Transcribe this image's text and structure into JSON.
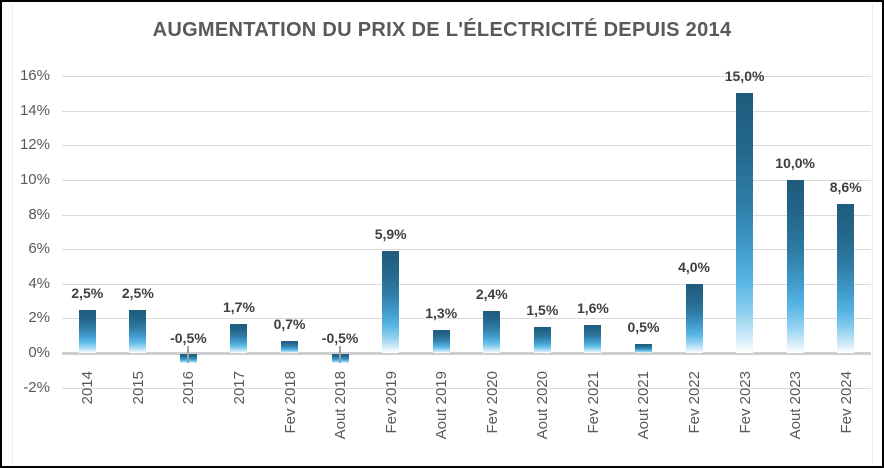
{
  "chart_data": {
    "type": "bar",
    "title": "AUGMENTATION DU PRIX DE L'ÉLECTRICITÉ DEPUIS 2014",
    "categories": [
      "2014",
      "2015",
      "2016",
      "2017",
      "Fev 2018",
      "Aout 2018",
      "Fev 2019",
      "Aout 2019",
      "Fev 2020",
      "Aout 2020",
      "Fev 2021",
      "Aout 2021",
      "Fev 2022",
      "Fev 2023",
      "Aout 2023",
      "Fev 2024"
    ],
    "values": [
      2.5,
      2.5,
      -0.5,
      1.7,
      0.7,
      -0.5,
      5.9,
      1.3,
      2.4,
      1.5,
      1.6,
      0.5,
      4.0,
      15.0,
      10.0,
      8.6
    ],
    "value_labels": [
      "2,5%",
      "2,5%",
      "-0,5%",
      "1,7%",
      "0,7%",
      "-0,5%",
      "5,9%",
      "1,3%",
      "2,4%",
      "1,5%",
      "1,6%",
      "0,5%",
      "4,0%",
      "15,0%",
      "10,0%",
      "8,6%"
    ],
    "xlabel": "",
    "ylabel": "",
    "ylim": [
      -2,
      16
    ],
    "y_axis": {
      "ticks": [
        {
          "v": 16,
          "label": "16%"
        },
        {
          "v": 14,
          "label": "14%"
        },
        {
          "v": 12,
          "label": "12%"
        },
        {
          "v": 10,
          "label": "10%"
        },
        {
          "v": 8,
          "label": "8%"
        },
        {
          "v": 6,
          "label": "6%"
        },
        {
          "v": 4,
          "label": "4%"
        },
        {
          "v": 2,
          "label": "2%"
        },
        {
          "v": 0,
          "label": "0%"
        },
        {
          "v": -2,
          "label": "-2%"
        }
      ]
    },
    "grid": true,
    "legend": false,
    "colors": {
      "bar_gradient_top": "#1f5b7c",
      "bar_gradient_mid": "#3f98c8",
      "bar_gradient_light": "#55b4e3",
      "bar_gradient_bottom": "#ffffff",
      "gridline": "#dadada",
      "zero_axis_line": "#cfcfcf",
      "value_label_text": "#3f3f3f",
      "axis_tick_text": "#595959",
      "title_text": "#595959",
      "frame_border": "#000000"
    }
  }
}
